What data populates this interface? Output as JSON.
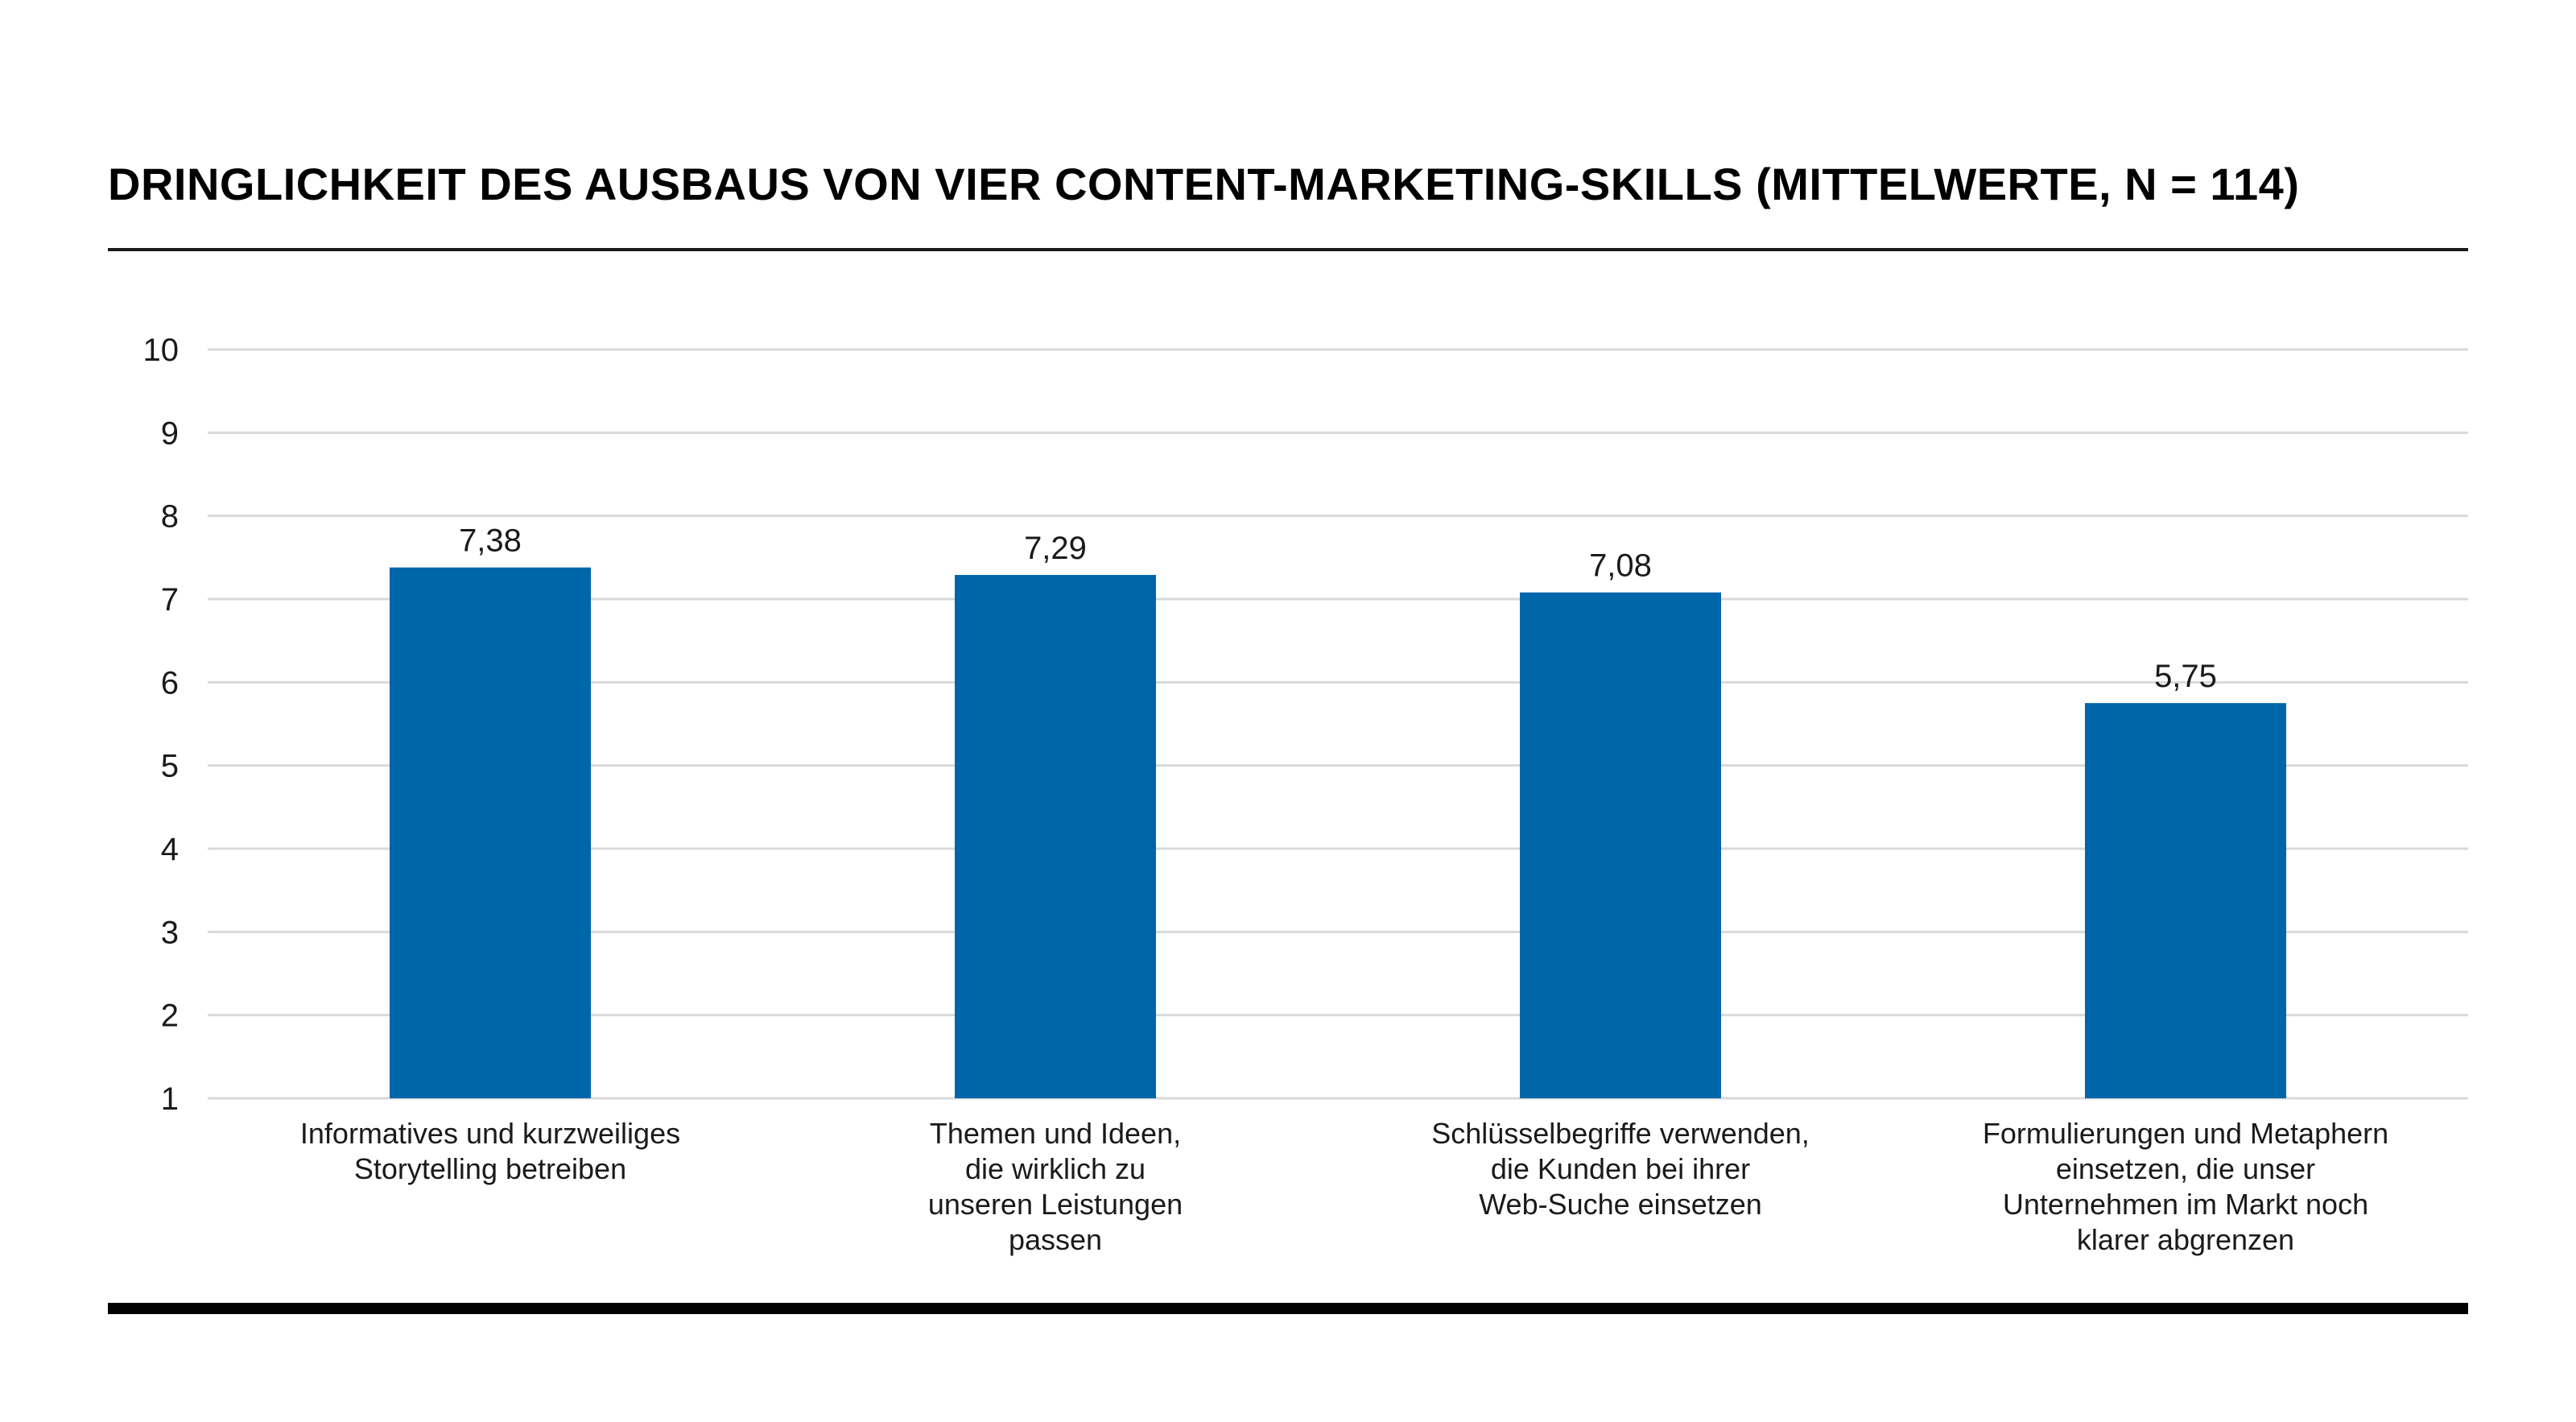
{
  "chart_data": {
    "type": "bar",
    "title": "DRINGLICHKEIT DES AUSBAUS VON VIER CONTENT-MARKETING-SKILLS (MITTELWERTE, N = 114)",
    "categories": [
      [
        "Informatives und kurzweiliges",
        "Storytelling betreiben"
      ],
      [
        "Themen und Ideen,",
        "die wirklich zu",
        "unseren Leistungen",
        "passen"
      ],
      [
        "Schlüsselbegriffe verwenden,",
        "die Kunden bei ihrer",
        "Web-Suche einsetzen"
      ],
      [
        "Formulierungen und Metaphern",
        "einsetzen, die unser",
        "Unternehmen im Markt noch",
        "klarer abgrenzen"
      ]
    ],
    "values": [
      7.38,
      7.29,
      7.08,
      5.75
    ],
    "value_labels": [
      "7,38",
      "7,29",
      "7,08",
      "5,75"
    ],
    "ylim": [
      1,
      10
    ],
    "yticks": [
      1,
      2,
      3,
      4,
      5,
      6,
      7,
      8,
      9,
      10
    ],
    "xlabel": "",
    "ylabel": "",
    "grid": true,
    "legend": "none",
    "bar_color": "#0066aa",
    "grid_color": "#d9d9d9"
  }
}
